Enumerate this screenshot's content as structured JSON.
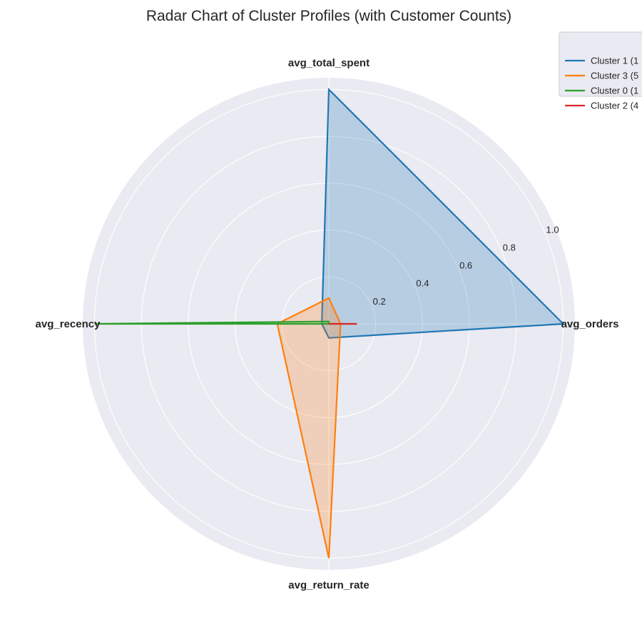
{
  "chart_data": {
    "type": "radar",
    "title": "Radar Chart of Cluster Profiles (with Customer Counts)",
    "axes": [
      "avg_orders",
      "avg_total_spent",
      "avg_recency",
      "avg_return_rate"
    ],
    "radial_ticks": [
      "0.2",
      "0.4",
      "0.6",
      "0.8",
      "1.0"
    ],
    "radial_tick_values": [
      0.2,
      0.4,
      0.6,
      0.8,
      1.0
    ],
    "rlim": [
      0,
      1.05
    ],
    "grid": true,
    "legend_position": "top-right",
    "series": [
      {
        "name": "Cluster 1 (1",
        "color": "#1f77b4",
        "values": [
          1.0,
          1.0,
          0.03,
          0.06
        ],
        "fill": true
      },
      {
        "name": "Cluster 3 (5",
        "color": "#ff7f0e",
        "values": [
          0.05,
          0.11,
          0.22,
          1.0
        ],
        "fill": true
      },
      {
        "name": "Cluster 0 (1",
        "color": "#2ca02c",
        "values": [
          0.0,
          0.01,
          1.0,
          0.0
        ],
        "fill": false
      },
      {
        "name": "Cluster 2 (4",
        "color": "#d62728",
        "values": [
          0.12,
          0.0,
          0.0,
          0.0
        ],
        "fill": false
      }
    ]
  }
}
